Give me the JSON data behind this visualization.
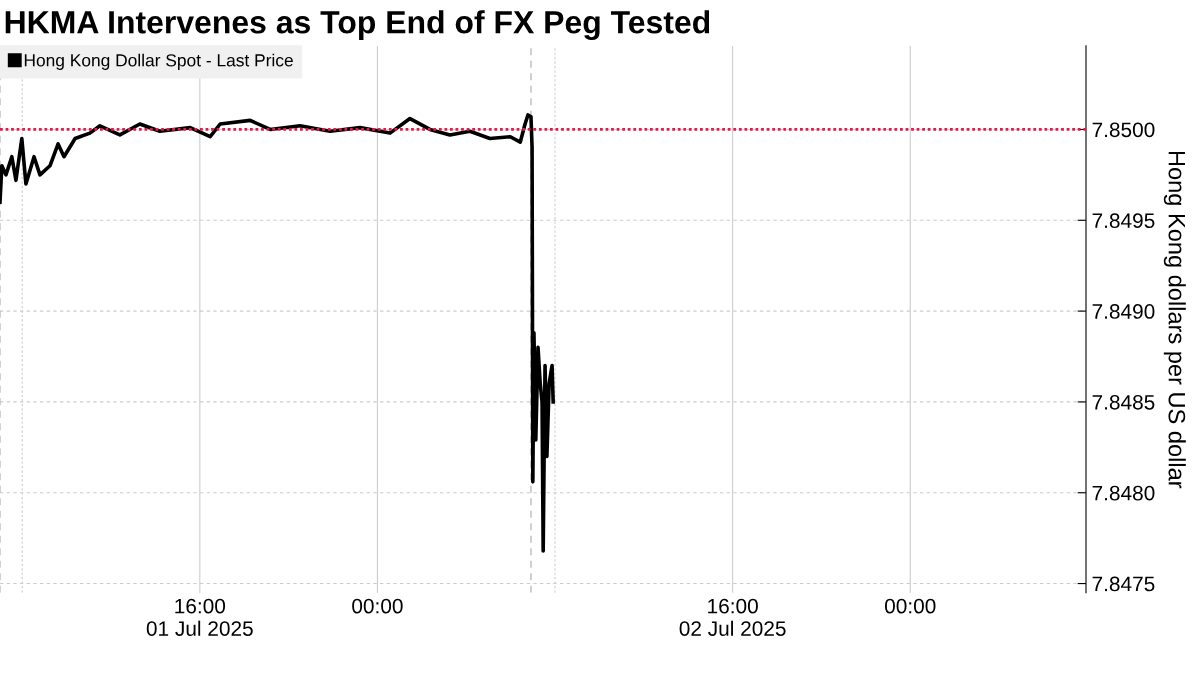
{
  "chart_data": {
    "type": "line",
    "title": "HKMA Intervenes as Top End of FX Peg Tested",
    "ylabel": "Hong Kong dollars per US dollar",
    "series": [
      {
        "name": "Hong Kong Dollar Spot - Last Price",
        "color": "#000000",
        "x": [
          "2025-07-01T07:00",
          "2025-07-01T07:05",
          "2025-07-01T07:16",
          "2025-07-01T07:32",
          "2025-07-01T07:43",
          "2025-07-01T07:59",
          "2025-07-01T08:10",
          "2025-07-01T08:32",
          "2025-07-01T08:48",
          "2025-07-01T09:15",
          "2025-07-01T09:37",
          "2025-07-01T09:53",
          "2025-07-01T10:23",
          "2025-07-01T11:03",
          "2025-07-01T11:30",
          "2025-07-01T12:24",
          "2025-07-01T13:18",
          "2025-07-01T14:12",
          "2025-07-01T15:34",
          "2025-07-01T16:28",
          "2025-07-01T16:55",
          "2025-07-01T18:16",
          "2025-07-01T19:10",
          "2025-07-01T20:31",
          "2025-07-01T21:52",
          "2025-07-01T23:13",
          "2025-07-02T00:34",
          "2025-07-02T01:28",
          "2025-07-02T02:22",
          "2025-07-02T03:16",
          "2025-07-02T04:10",
          "2025-07-02T05:04",
          "2025-07-02T05:59",
          "2025-07-02T06:26",
          "2025-07-02T06:39",
          "2025-07-02T06:47",
          "2025-07-02T06:55",
          "2025-07-02T06:58",
          "2025-07-02T07:00",
          "2025-07-02T07:03",
          "2025-07-02T07:08",
          "2025-07-02T07:14",
          "2025-07-02T07:20",
          "2025-07-02T07:25",
          "2025-07-02T07:28",
          "2025-07-02T07:33",
          "2025-07-02T07:38",
          "2025-07-02T07:44",
          "2025-07-02T07:52",
          "2025-07-02T07:55"
        ],
        "values": [
          7.8496,
          7.8498,
          7.84975,
          7.84985,
          7.84972,
          7.84995,
          7.8497,
          7.84985,
          7.84975,
          7.8498,
          7.84992,
          7.84985,
          7.84995,
          7.84998,
          7.85002,
          7.84997,
          7.85003,
          7.84999,
          7.85001,
          7.84996,
          7.85003,
          7.85005,
          7.85,
          7.85002,
          7.84999,
          7.85001,
          7.84998,
          7.85006,
          7.85,
          7.84997,
          7.84999,
          7.84995,
          7.84996,
          7.84993,
          7.85003,
          7.85008,
          7.85007,
          7.8499,
          7.84806,
          7.84888,
          7.84829,
          7.8488,
          7.8486,
          7.8485,
          7.84768,
          7.8487,
          7.8482,
          7.8486,
          7.8487,
          7.8485
        ]
      }
    ],
    "xlim": [
      "2025-07-01T07:00",
      "2025-07-03T07:55"
    ],
    "xticks": [
      {
        "value": "2025-07-01T08:00",
        "label": null
      },
      {
        "value": "2025-07-01T16:00",
        "label": "16:00\n01 Jul 2025"
      },
      {
        "value": "2025-07-02T00:00",
        "label": "00:00"
      },
      {
        "value": "2025-07-02T08:00",
        "label": null
      },
      {
        "value": "2025-07-02T16:00",
        "label": "16:00\n02 Jul 2025"
      },
      {
        "value": "2025-07-03T00:00",
        "label": "00:00"
      }
    ],
    "ylim": [
      7.84745,
      7.85046
    ],
    "yticks": [
      {
        "value": 7.8475,
        "label": "7.8475"
      },
      {
        "value": 7.848,
        "label": "7.8480"
      },
      {
        "value": 7.8485,
        "label": "7.8485"
      },
      {
        "value": 7.849,
        "label": "7.8490"
      },
      {
        "value": 7.8495,
        "label": "7.8495"
      },
      {
        "value": 7.85,
        "label": "7.8500"
      }
    ],
    "ref_lines": [
      {
        "axis": "y",
        "value": 7.85,
        "color": "#e8174a",
        "line_style": "dotted"
      },
      {
        "axis": "x",
        "value": "2025-07-01T07:00",
        "color": "#bbbbbb",
        "line_style": "dashed"
      },
      {
        "axis": "x",
        "value": "2025-07-02T06:55",
        "color": "#bbbbbb",
        "line_style": "dashed"
      }
    ],
    "grid": true,
    "legend": "top left",
    "line_style": "solid",
    "marker": "none"
  }
}
